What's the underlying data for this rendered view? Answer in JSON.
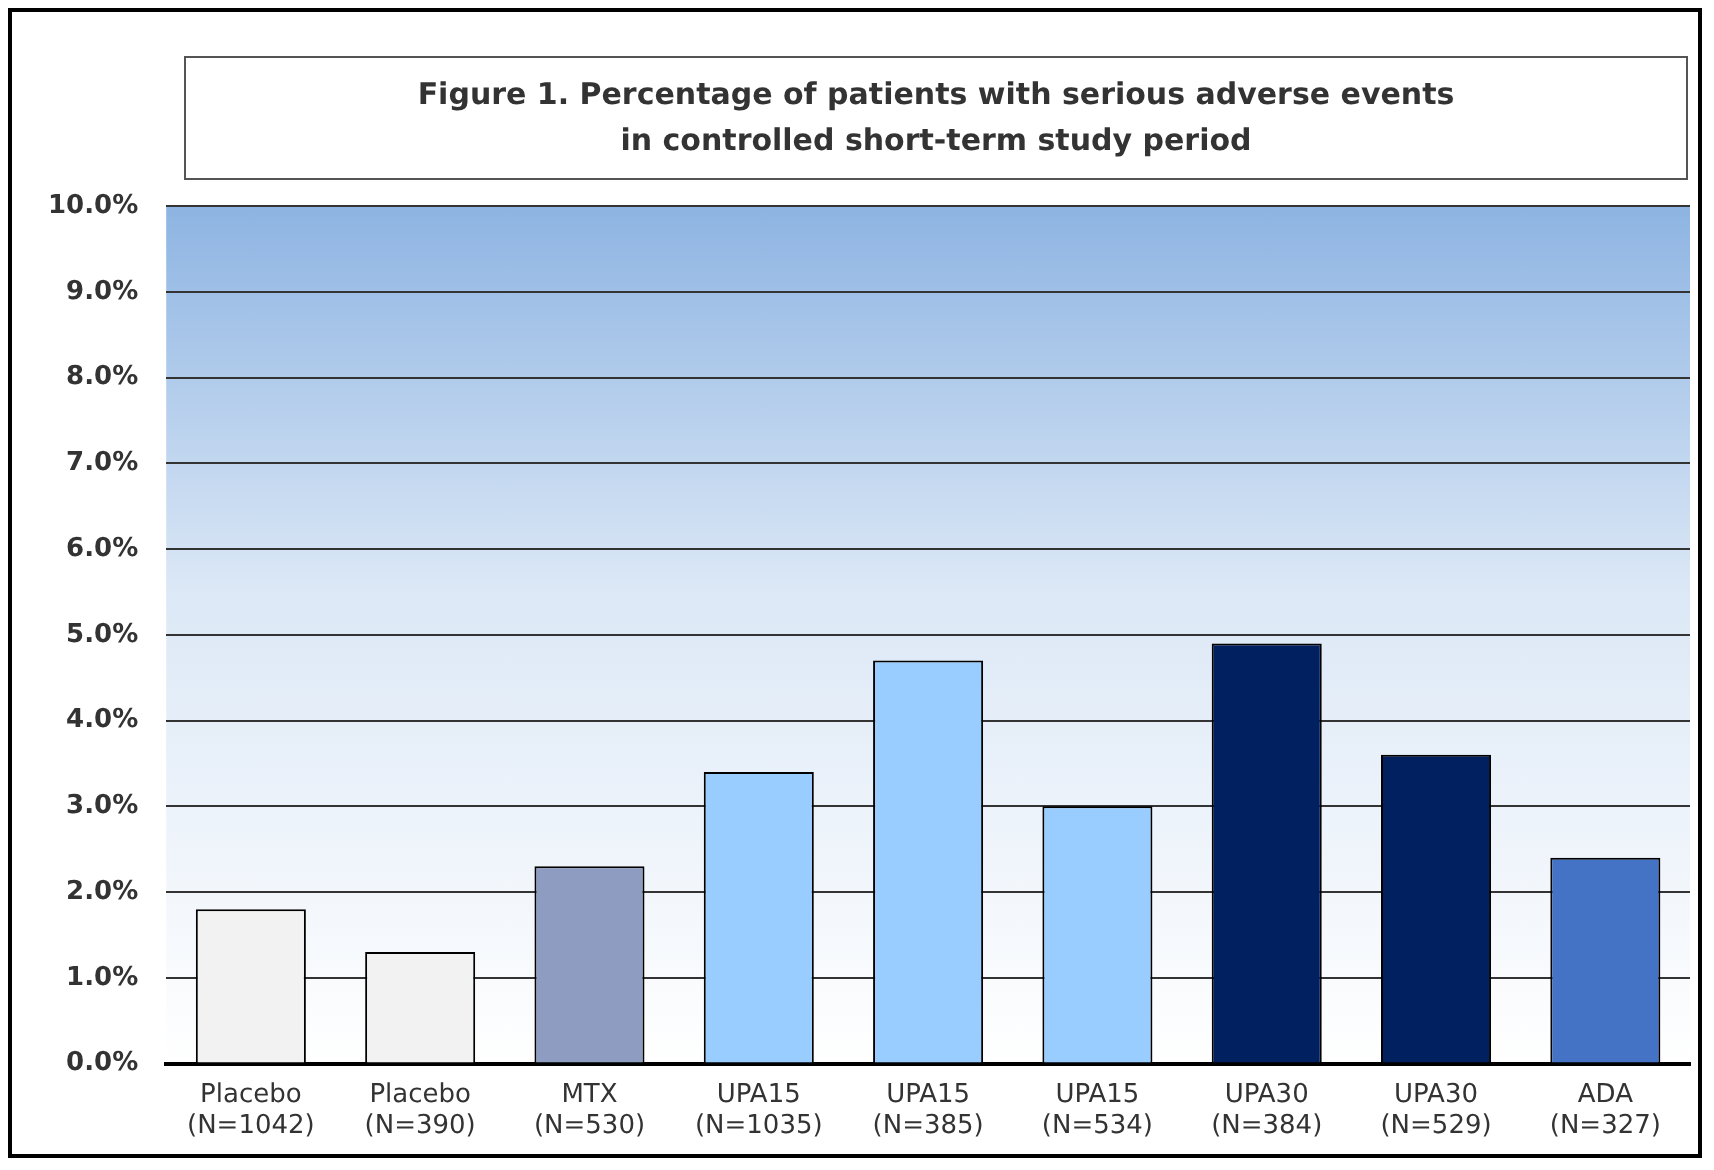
{
  "chart_data": {
    "type": "bar",
    "title": "Figure 1. Percentage of patients with serious adverse events\nin controlled short-term study period",
    "categories": [
      "Placebo\n(N=1042)",
      "Placebo\n(N=390)",
      "MTX\n(N=530)",
      "UPA15\n(N=1035)",
      "UPA15\n(N=385)",
      "UPA15\n(N=534)",
      "UPA30\n(N=384)",
      "UPA30\n(N=529)",
      "ADA\n(N=327)"
    ],
    "values": [
      1.8,
      1.3,
      2.3,
      3.4,
      4.7,
      3.0,
      4.9,
      3.6,
      2.4
    ],
    "colors": [
      "#f2f2f2",
      "#f2f2f2",
      "#8d9cc0",
      "#99ccff",
      "#99ccff",
      "#99ccff",
      "#002060",
      "#002060",
      "#4472c4"
    ],
    "ylim": [
      0,
      10
    ],
    "yticks": [
      {
        "value": 0,
        "label": "0.0%"
      },
      {
        "value": 1,
        "label": "1.0%"
      },
      {
        "value": 2,
        "label": "2.0%"
      },
      {
        "value": 3,
        "label": "3.0%"
      },
      {
        "value": 4,
        "label": "4.0%"
      },
      {
        "value": 5,
        "label": "5.0%"
      },
      {
        "value": 6,
        "label": "6.0%"
      },
      {
        "value": 7,
        "label": "7.0%"
      },
      {
        "value": 8,
        "label": "8.0%"
      },
      {
        "value": 9,
        "label": "9.0%"
      },
      {
        "value": 10,
        "label": "10.0%"
      }
    ],
    "grid": "y",
    "legend": false
  }
}
